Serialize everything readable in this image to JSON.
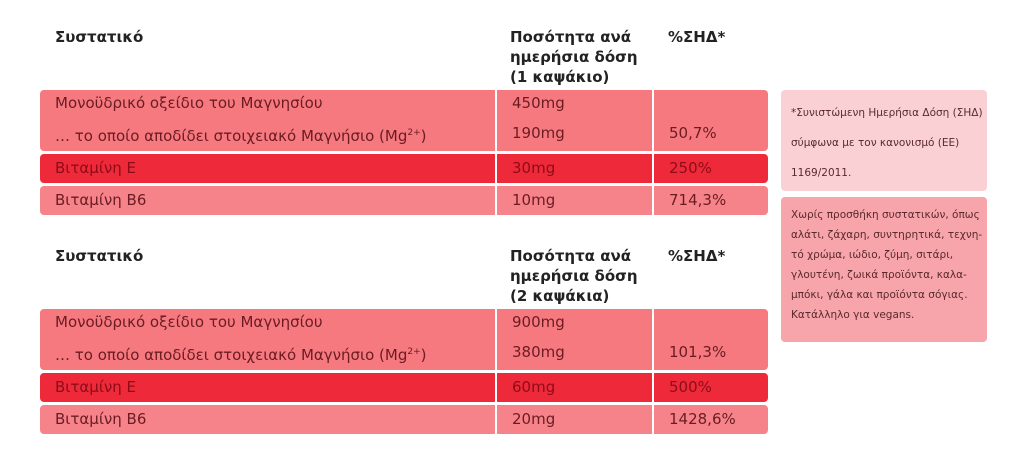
{
  "tables": [
    {
      "header": [
        "Συστατικό",
        "Ποσότητα ανά ημερήσια δόση (1 καψάκιο)",
        "%ΣΗΔ*"
      ],
      "rows": [
        {
          "name": "Μονοϋδρικό οξείδιο του Μαγνησίου",
          "amount": "450mg"
        },
        {
          "name_parts": [
            "… το οποίο αποδίδει στοιχειακό Μαγνήσιο (Mg",
            "2+",
            ")"
          ],
          "amount": "190mg",
          "rda": "50,7%"
        },
        {
          "name": "Βιταμίνη Ε",
          "amount": "30mg",
          "rda": "250%"
        },
        {
          "name": "Βιταμίνη Β6",
          "amount": "10mg",
          "rda": "714,3%"
        }
      ]
    },
    {
      "header": [
        "Συστατικό",
        "Ποσότητα ανά ημερήσια δόση (2 καψάκια)",
        "%ΣΗΔ*"
      ],
      "rows": [
        {
          "name": "Μονοϋδρικό οξείδιο του Μαγνησίου",
          "amount": "900mg"
        },
        {
          "name_parts": [
            "… το οποίο αποδίδει στοιχειακό Μαγνήσιο (Mg",
            "2+",
            ")"
          ],
          "amount": "380mg",
          "rda": "101,3%"
        },
        {
          "name": "Βιταμίνη Ε",
          "amount": "60mg",
          "rda": "500%"
        },
        {
          "name": "Βιταμίνη Β6",
          "amount": "20mg",
          "rda": "1428,6%"
        }
      ]
    }
  ],
  "notes": [
    [
      "*Συνιστώμενη Ημερήσια Δόση (ΣΗΔ)",
      "σύμφωνα με τον κανονισμό (ΕΕ)",
      "1169/2011."
    ],
    [
      "Χωρίς προσθήκη συστατικών, όπως",
      "αλάτι, ζάχαρη, συντηρητικά, τεχνη-",
      "τό χρώμα, ιώδιο, ζύμη, σιτάρι,",
      "γλουτένη, ζωικά προϊόντα, καλα-",
      "μπόκι, γάλα και προϊόντα σόγιας.",
      "Κατάλληλο για vegans."
    ]
  ]
}
